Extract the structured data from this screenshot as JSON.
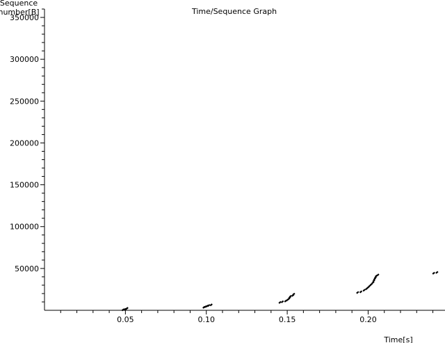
{
  "window": {
    "background": "#ffffff"
  },
  "chart_data": {
    "type": "scatter",
    "title": "Time/Sequence Graph",
    "xlabel": "Time[s]",
    "ylabel": [
      "Sequence",
      "number[B]"
    ],
    "xlim": [
      0.0,
      0.2475
    ],
    "ylim": [
      0,
      360000
    ],
    "x_ticks": [
      0.05,
      0.1,
      0.15,
      0.2
    ],
    "x_tick_labels": [
      "0.05",
      "0.10",
      "0.15",
      "0.20"
    ],
    "y_ticks": [
      50000,
      100000,
      150000,
      200000,
      250000,
      300000,
      350000
    ],
    "y_tick_labels": [
      "50000",
      "100000",
      "150000",
      "200000",
      "250000",
      "300000",
      "350000"
    ],
    "grid": false,
    "marker_color": "#000000",
    "series": [
      {
        "points": [
          [
            0.0485,
            600
          ],
          [
            0.0495,
            1100
          ],
          [
            0.0505,
            1700
          ],
          [
            0.051,
            2300
          ],
          [
            0.0985,
            3600
          ],
          [
            0.0995,
            4300
          ],
          [
            0.1005,
            5000
          ],
          [
            0.1015,
            5800
          ],
          [
            0.103,
            6500
          ],
          [
            0.1455,
            9400
          ],
          [
            0.147,
            10200
          ],
          [
            0.149,
            11100
          ],
          [
            0.15,
            12200
          ],
          [
            0.151,
            13700
          ],
          [
            0.1515,
            15200
          ],
          [
            0.152,
            16700
          ],
          [
            0.1535,
            17800
          ],
          [
            0.154,
            19300
          ],
          [
            0.1935,
            21300
          ],
          [
            0.1955,
            22100
          ],
          [
            0.1975,
            24000
          ],
          [
            0.199,
            25700
          ],
          [
            0.2,
            27400
          ],
          [
            0.201,
            29300
          ],
          [
            0.202,
            31100
          ],
          [
            0.203,
            33200
          ],
          [
            0.2035,
            35300
          ],
          [
            0.204,
            37400
          ],
          [
            0.2045,
            39200
          ],
          [
            0.205,
            41000
          ],
          [
            0.206,
            42200
          ],
          [
            0.2405,
            44300
          ],
          [
            0.2425,
            45300
          ]
        ]
      }
    ]
  }
}
